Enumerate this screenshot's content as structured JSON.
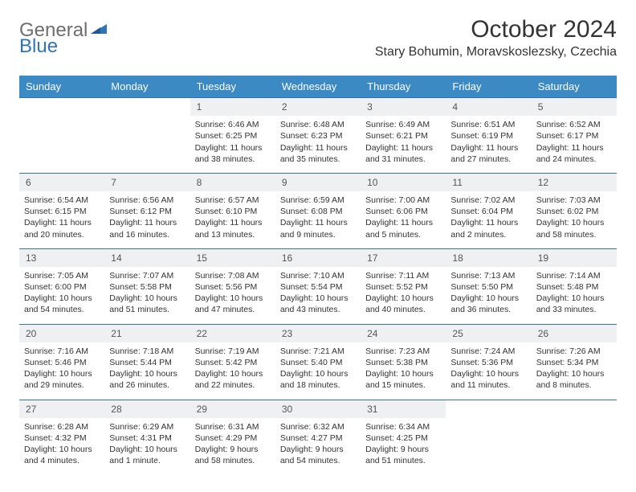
{
  "logo": {
    "word1": "General",
    "word2": "Blue"
  },
  "title": "October 2024",
  "location": "Stary Bohumin, Moravskoslezsky, Czechia",
  "colors": {
    "header_bg": "#3b8ac4",
    "header_text": "#ffffff",
    "daynum_bg": "#eef0f2",
    "row_border": "#2f75b5",
    "logo_gray": "#6e6e6e",
    "logo_blue": "#2f75b5"
  },
  "day_headers": [
    "Sunday",
    "Monday",
    "Tuesday",
    "Wednesday",
    "Thursday",
    "Friday",
    "Saturday"
  ],
  "weeks": [
    {
      "nums": [
        "",
        "",
        "1",
        "2",
        "3",
        "4",
        "5"
      ],
      "cells": [
        null,
        null,
        {
          "sunrise": "Sunrise: 6:46 AM",
          "sunset": "Sunset: 6:25 PM",
          "daylight": "Daylight: 11 hours and 38 minutes."
        },
        {
          "sunrise": "Sunrise: 6:48 AM",
          "sunset": "Sunset: 6:23 PM",
          "daylight": "Daylight: 11 hours and 35 minutes."
        },
        {
          "sunrise": "Sunrise: 6:49 AM",
          "sunset": "Sunset: 6:21 PM",
          "daylight": "Daylight: 11 hours and 31 minutes."
        },
        {
          "sunrise": "Sunrise: 6:51 AM",
          "sunset": "Sunset: 6:19 PM",
          "daylight": "Daylight: 11 hours and 27 minutes."
        },
        {
          "sunrise": "Sunrise: 6:52 AM",
          "sunset": "Sunset: 6:17 PM",
          "daylight": "Daylight: 11 hours and 24 minutes."
        }
      ]
    },
    {
      "nums": [
        "6",
        "7",
        "8",
        "9",
        "10",
        "11",
        "12"
      ],
      "cells": [
        {
          "sunrise": "Sunrise: 6:54 AM",
          "sunset": "Sunset: 6:15 PM",
          "daylight": "Daylight: 11 hours and 20 minutes."
        },
        {
          "sunrise": "Sunrise: 6:56 AM",
          "sunset": "Sunset: 6:12 PM",
          "daylight": "Daylight: 11 hours and 16 minutes."
        },
        {
          "sunrise": "Sunrise: 6:57 AM",
          "sunset": "Sunset: 6:10 PM",
          "daylight": "Daylight: 11 hours and 13 minutes."
        },
        {
          "sunrise": "Sunrise: 6:59 AM",
          "sunset": "Sunset: 6:08 PM",
          "daylight": "Daylight: 11 hours and 9 minutes."
        },
        {
          "sunrise": "Sunrise: 7:00 AM",
          "sunset": "Sunset: 6:06 PM",
          "daylight": "Daylight: 11 hours and 5 minutes."
        },
        {
          "sunrise": "Sunrise: 7:02 AM",
          "sunset": "Sunset: 6:04 PM",
          "daylight": "Daylight: 11 hours and 2 minutes."
        },
        {
          "sunrise": "Sunrise: 7:03 AM",
          "sunset": "Sunset: 6:02 PM",
          "daylight": "Daylight: 10 hours and 58 minutes."
        }
      ]
    },
    {
      "nums": [
        "13",
        "14",
        "15",
        "16",
        "17",
        "18",
        "19"
      ],
      "cells": [
        {
          "sunrise": "Sunrise: 7:05 AM",
          "sunset": "Sunset: 6:00 PM",
          "daylight": "Daylight: 10 hours and 54 minutes."
        },
        {
          "sunrise": "Sunrise: 7:07 AM",
          "sunset": "Sunset: 5:58 PM",
          "daylight": "Daylight: 10 hours and 51 minutes."
        },
        {
          "sunrise": "Sunrise: 7:08 AM",
          "sunset": "Sunset: 5:56 PM",
          "daylight": "Daylight: 10 hours and 47 minutes."
        },
        {
          "sunrise": "Sunrise: 7:10 AM",
          "sunset": "Sunset: 5:54 PM",
          "daylight": "Daylight: 10 hours and 43 minutes."
        },
        {
          "sunrise": "Sunrise: 7:11 AM",
          "sunset": "Sunset: 5:52 PM",
          "daylight": "Daylight: 10 hours and 40 minutes."
        },
        {
          "sunrise": "Sunrise: 7:13 AM",
          "sunset": "Sunset: 5:50 PM",
          "daylight": "Daylight: 10 hours and 36 minutes."
        },
        {
          "sunrise": "Sunrise: 7:14 AM",
          "sunset": "Sunset: 5:48 PM",
          "daylight": "Daylight: 10 hours and 33 minutes."
        }
      ]
    },
    {
      "nums": [
        "20",
        "21",
        "22",
        "23",
        "24",
        "25",
        "26"
      ],
      "cells": [
        {
          "sunrise": "Sunrise: 7:16 AM",
          "sunset": "Sunset: 5:46 PM",
          "daylight": "Daylight: 10 hours and 29 minutes."
        },
        {
          "sunrise": "Sunrise: 7:18 AM",
          "sunset": "Sunset: 5:44 PM",
          "daylight": "Daylight: 10 hours and 26 minutes."
        },
        {
          "sunrise": "Sunrise: 7:19 AM",
          "sunset": "Sunset: 5:42 PM",
          "daylight": "Daylight: 10 hours and 22 minutes."
        },
        {
          "sunrise": "Sunrise: 7:21 AM",
          "sunset": "Sunset: 5:40 PM",
          "daylight": "Daylight: 10 hours and 18 minutes."
        },
        {
          "sunrise": "Sunrise: 7:23 AM",
          "sunset": "Sunset: 5:38 PM",
          "daylight": "Daylight: 10 hours and 15 minutes."
        },
        {
          "sunrise": "Sunrise: 7:24 AM",
          "sunset": "Sunset: 5:36 PM",
          "daylight": "Daylight: 10 hours and 11 minutes."
        },
        {
          "sunrise": "Sunrise: 7:26 AM",
          "sunset": "Sunset: 5:34 PM",
          "daylight": "Daylight: 10 hours and 8 minutes."
        }
      ]
    },
    {
      "nums": [
        "27",
        "28",
        "29",
        "30",
        "31",
        "",
        ""
      ],
      "cells": [
        {
          "sunrise": "Sunrise: 6:28 AM",
          "sunset": "Sunset: 4:32 PM",
          "daylight": "Daylight: 10 hours and 4 minutes."
        },
        {
          "sunrise": "Sunrise: 6:29 AM",
          "sunset": "Sunset: 4:31 PM",
          "daylight": "Daylight: 10 hours and 1 minute."
        },
        {
          "sunrise": "Sunrise: 6:31 AM",
          "sunset": "Sunset: 4:29 PM",
          "daylight": "Daylight: 9 hours and 58 minutes."
        },
        {
          "sunrise": "Sunrise: 6:32 AM",
          "sunset": "Sunset: 4:27 PM",
          "daylight": "Daylight: 9 hours and 54 minutes."
        },
        {
          "sunrise": "Sunrise: 6:34 AM",
          "sunset": "Sunset: 4:25 PM",
          "daylight": "Daylight: 9 hours and 51 minutes."
        },
        null,
        null
      ]
    }
  ]
}
